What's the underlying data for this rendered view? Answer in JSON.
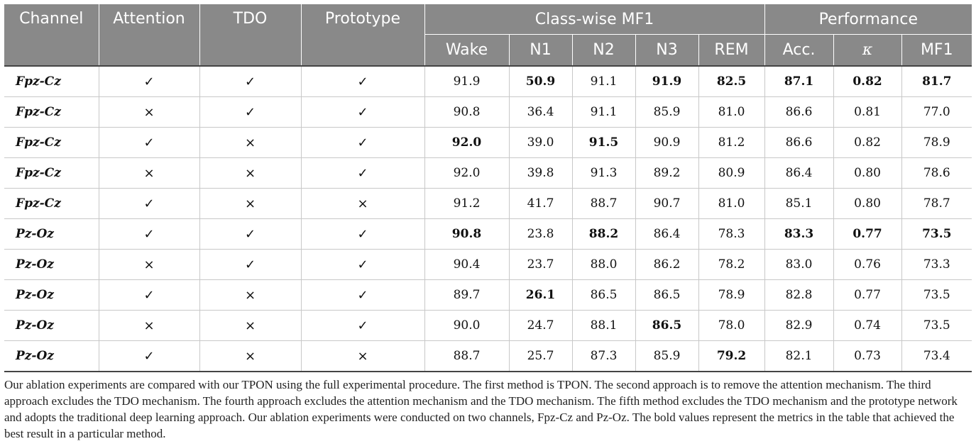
{
  "header": {
    "channel": "Channel",
    "attention": "Attention",
    "tdo": "TDO",
    "prototype": "Prototype",
    "classwise": "Class-wise MF1",
    "performance": "Performance",
    "sub": [
      "Wake",
      "N1",
      "N2",
      "N3",
      "REM",
      "Acc.",
      "κ",
      "MF1"
    ]
  },
  "rows": [
    {
      "channel": "Fpz-Cz",
      "attention": "✓",
      "tdo": "✓",
      "prototype": "✓",
      "wake": "91.9",
      "n1": "50.9",
      "n2": "91.1",
      "n3": "91.9",
      "rem": "82.5",
      "acc": "87.1",
      "kappa": "0.82",
      "mf1": "81.7"
    },
    {
      "channel": "Fpz-Cz",
      "attention": "×",
      "tdo": "✓",
      "prototype": "✓",
      "wake": "90.8",
      "n1": "36.4",
      "n2": "91.1",
      "n3": "85.9",
      "rem": "81.0",
      "acc": "86.6",
      "kappa": "0.81",
      "mf1": "77.0"
    },
    {
      "channel": "Fpz-Cz",
      "attention": "✓",
      "tdo": "×",
      "prototype": "✓",
      "wake": "92.0",
      "n1": "39.0",
      "n2": "91.5",
      "n3": "90.9",
      "rem": "81.2",
      "acc": "86.6",
      "kappa": "0.82",
      "mf1": "78.9"
    },
    {
      "channel": "Fpz-Cz",
      "attention": "×",
      "tdo": "×",
      "prototype": "✓",
      "wake": "92.0",
      "n1": "39.8",
      "n2": "91.3",
      "n3": "89.2",
      "rem": "80.9",
      "acc": "86.4",
      "kappa": "0.80",
      "mf1": "78.6"
    },
    {
      "channel": "Fpz-Cz",
      "attention": "✓",
      "tdo": "×",
      "prototype": "×",
      "wake": "91.2",
      "n1": "41.7",
      "n2": "88.7",
      "n3": "90.7",
      "rem": "81.0",
      "acc": "85.1",
      "kappa": "0.80",
      "mf1": "78.7"
    },
    {
      "channel": "Pz-Oz",
      "attention": "✓",
      "tdo": "✓",
      "prototype": "✓",
      "wake": "90.8",
      "n1": "23.8",
      "n2": "88.2",
      "n3": "86.4",
      "rem": "78.3",
      "acc": "83.3",
      "kappa": "0.77",
      "mf1": "73.5"
    },
    {
      "channel": "Pz-Oz",
      "attention": "×",
      "tdo": "✓",
      "prototype": "✓",
      "wake": "90.4",
      "n1": "23.7",
      "n2": "88.0",
      "n3": "86.2",
      "rem": "78.2",
      "acc": "83.0",
      "kappa": "0.76",
      "mf1": "73.3"
    },
    {
      "channel": "Pz-Oz",
      "attention": "✓",
      "tdo": "×",
      "prototype": "✓",
      "wake": "89.7",
      "n1": "26.1",
      "n2": "86.5",
      "n3": "86.5",
      "rem": "78.9",
      "acc": "82.8",
      "kappa": "0.77",
      "mf1": "73.5"
    },
    {
      "channel": "Pz-Oz",
      "attention": "×",
      "tdo": "×",
      "prototype": "✓",
      "wake": "90.0",
      "n1": "24.7",
      "n2": "88.1",
      "n3": "86.5",
      "rem": "78.0",
      "acc": "82.9",
      "kappa": "0.74",
      "mf1": "73.5"
    },
    {
      "channel": "Pz-Oz",
      "attention": "✓",
      "tdo": "×",
      "prototype": "×",
      "wake": "88.7",
      "n1": "25.7",
      "n2": "87.3",
      "n3": "85.9",
      "rem": "79.2",
      "acc": "82.1",
      "kappa": "0.73",
      "mf1": "73.4"
    }
  ],
  "bold": {
    "0": [
      "n1",
      "n3",
      "rem",
      "acc",
      "kappa",
      "mf1"
    ],
    "2": [
      "wake",
      "n2"
    ],
    "5": [
      "wake",
      "n2",
      "acc",
      "kappa",
      "mf1"
    ],
    "7": [
      "n1"
    ],
    "8": [
      "n3"
    ],
    "9": [
      "rem"
    ]
  },
  "caption": "Our ablation experiments are compared with our TPON using the full experimental procedure. The first method is TPON. The second approach is to remove the attention mechanism. The third approach excludes the TDO mechanism. The fourth approach excludes the attention mechanism and the TDO mechanism. The fifth method excludes the TDO mechanism and the prototype network and adopts the traditional deep learning approach. Our ablation experiments were conducted on two channels, Fpz-Cz and Pz-Oz. The bold values represent the metrics in the table that achieved the best result in a particular method."
}
